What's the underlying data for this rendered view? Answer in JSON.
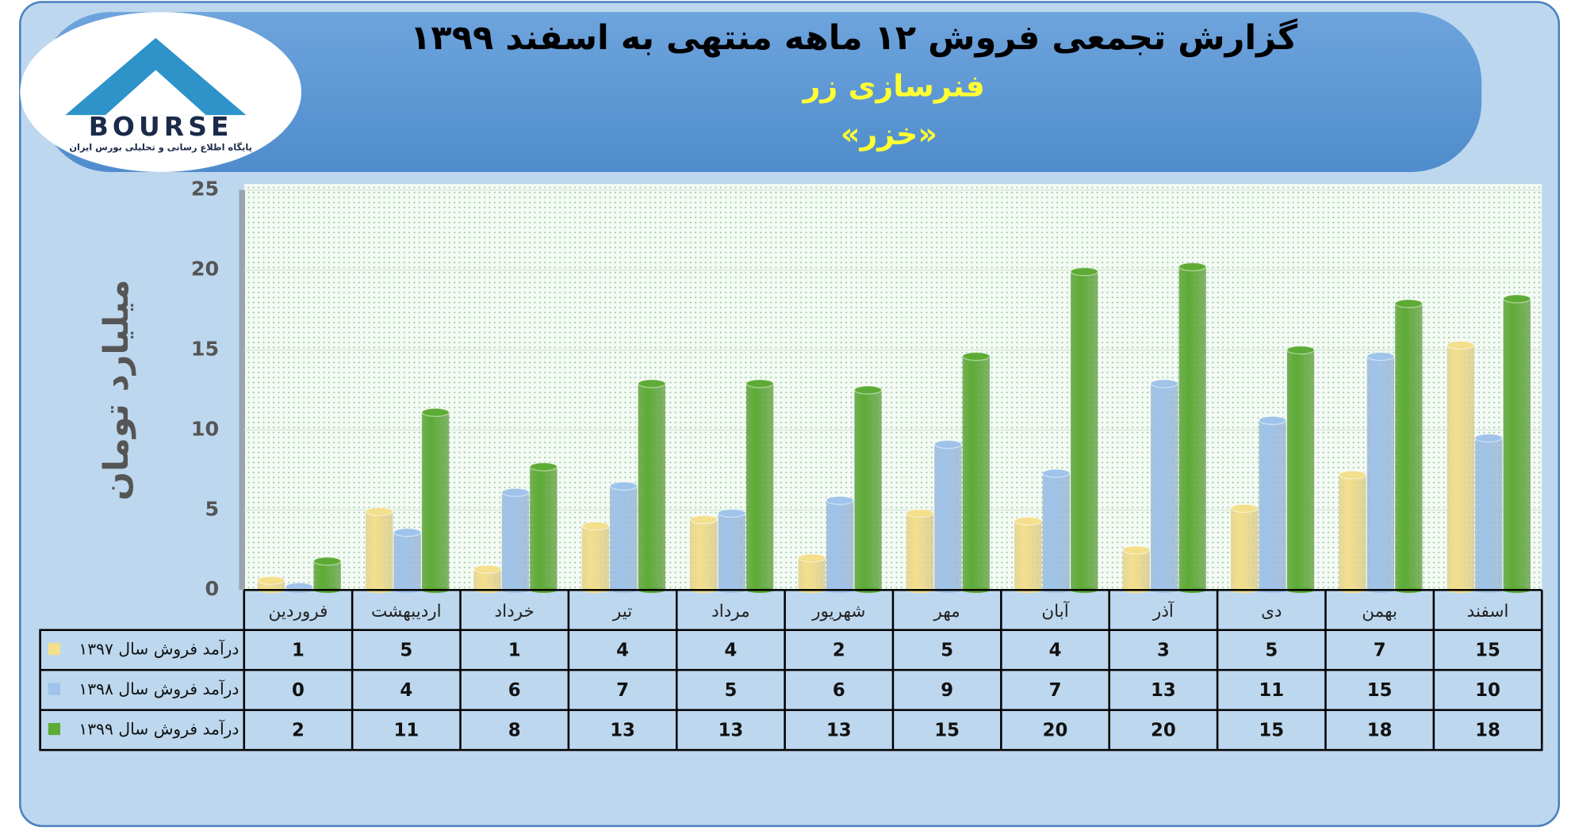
{
  "logo": {
    "name": "BOURSE",
    "tagline": "پایگاه اطلاع رسانی و تحلیلی بورس ایران"
  },
  "chart_data": {
    "type": "bar",
    "title": "گزارش تجمعی فروش ۱۲ ماهه منتهی به اسفند ۱۳۹۹",
    "subtitle": "فنرسازی زر",
    "symbol": "«خزر»",
    "y_label": "میلیارد تومان",
    "categories": [
      "فروردین",
      "اردیبهشت",
      "خرداد",
      "تیر",
      "مرداد",
      "شهریور",
      "مهر",
      "آبان",
      "آذر",
      "دی",
      "بهمن",
      "اسفند"
    ],
    "series": [
      {
        "name": "درآمد فروش سال ۱۳۹۷",
        "color": "#f3df8c",
        "values": [
          0.6,
          4.9,
          1.3,
          4,
          4.4,
          2,
          4.8,
          4.3,
          2.5,
          5.1,
          7.2,
          15.3
        ],
        "value_labels": [
          "1",
          "5",
          "1",
          "4",
          "4",
          "2",
          "5",
          "4",
          "3",
          "5",
          "7",
          "15"
        ]
      },
      {
        "name": "درآمد فروش سال ۱۳۹۸",
        "color": "#9fc3ea",
        "values": [
          0.2,
          3.6,
          6.1,
          6.5,
          4.8,
          5.6,
          9.1,
          7.3,
          12.9,
          10.6,
          14.6,
          9.5
        ],
        "value_labels": [
          "0",
          "4",
          "6",
          "7",
          "5",
          "6",
          "9",
          "7",
          "13",
          "11",
          "15",
          "10"
        ]
      },
      {
        "name": "درآمد فروش سال ۱۳۹۹",
        "color": "#5dab35",
        "values": [
          1.8,
          11.1,
          7.7,
          12.9,
          12.9,
          12.5,
          14.6,
          19.9,
          20.2,
          15,
          17.9,
          18.2
        ],
        "value_labels": [
          "2",
          "11",
          "8",
          "13",
          "13",
          "13",
          "15",
          "20",
          "20",
          "15",
          "18",
          "18"
        ]
      }
    ],
    "ylim": [
      0,
      25
    ],
    "yticks": [
      0,
      5,
      10,
      15,
      20,
      25
    ],
    "grid": true
  }
}
